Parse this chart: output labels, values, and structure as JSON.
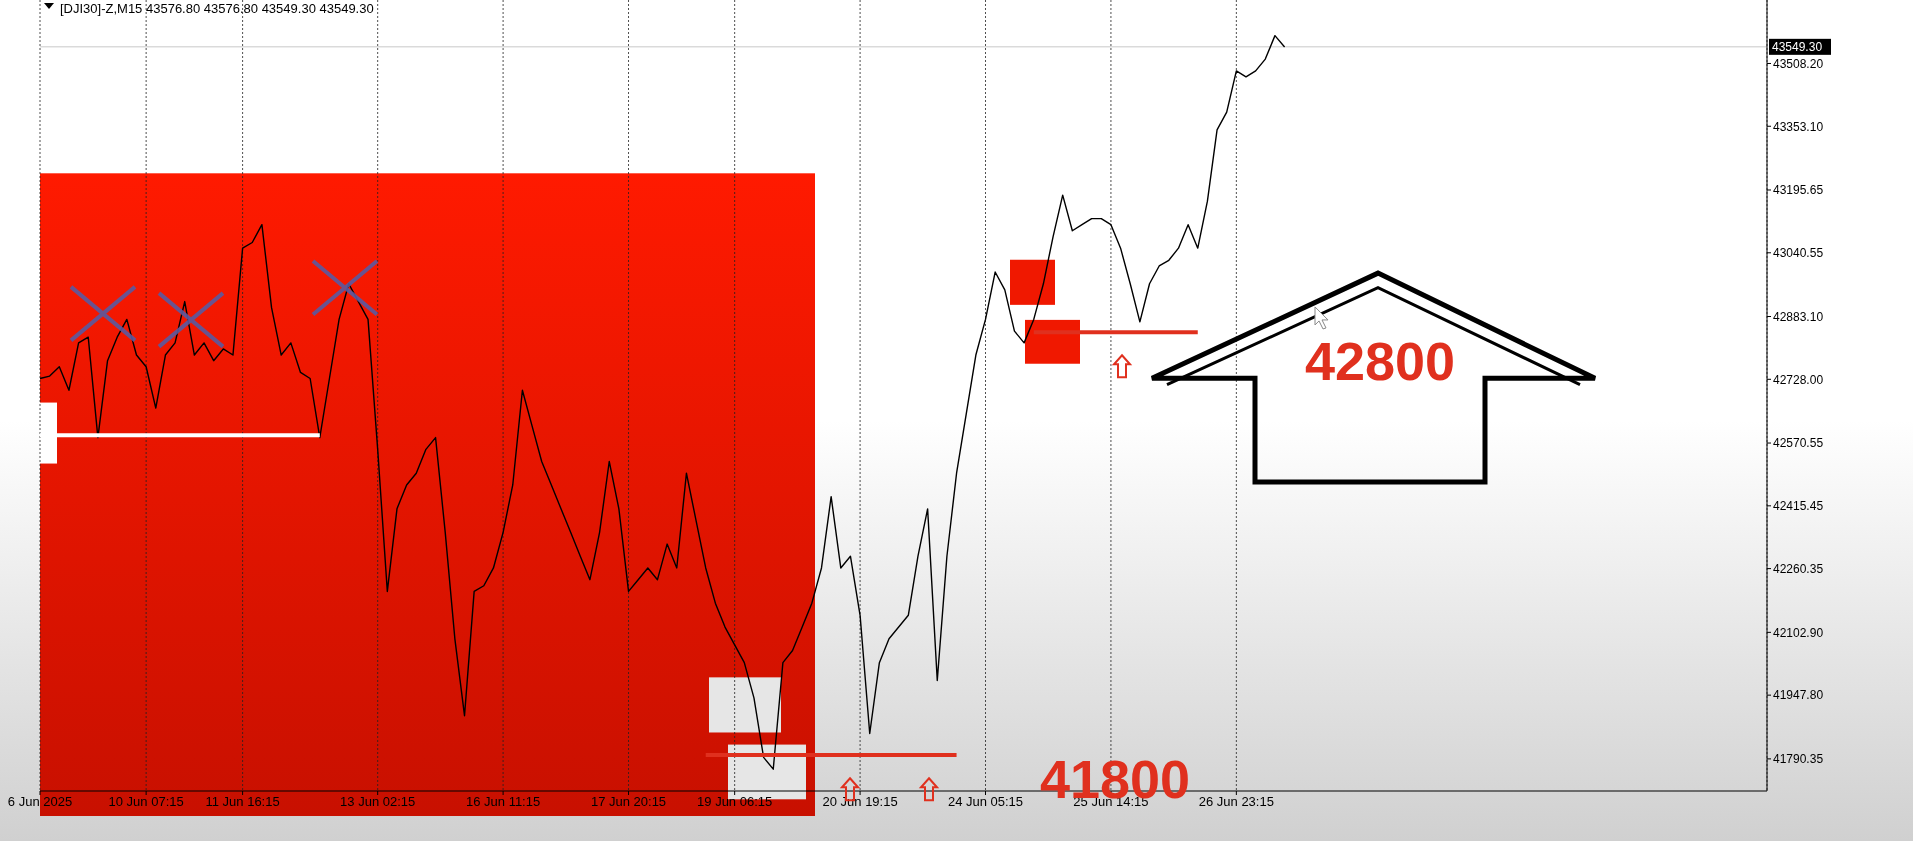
{
  "chart_data": {
    "type": "line",
    "title": "[DJI30]-Z,M15  43576.80 43576.80 43549.30 43549.30",
    "categories": [
      "6 Jun 2025",
      null,
      null,
      null,
      null,
      null,
      null,
      null,
      null,
      null,
      null,
      "10 Jun 07:15",
      null,
      null,
      null,
      null,
      null,
      null,
      null,
      null,
      null,
      "11 Jun 16:15",
      null,
      null,
      null,
      null,
      null,
      null,
      null,
      null,
      null,
      null,
      null,
      null,
      null,
      "13 Jun 02:15",
      null,
      null,
      null,
      null,
      null,
      null,
      null,
      null,
      null,
      null,
      null,
      null,
      "16 Jun 11:15",
      null,
      null,
      null,
      null,
      null,
      null,
      null,
      null,
      null,
      null,
      null,
      null,
      "17 Jun 20:15",
      null,
      null,
      null,
      null,
      null,
      null,
      null,
      null,
      null,
      null,
      "19 Jun 06:15",
      null,
      null,
      null,
      null,
      null,
      null,
      null,
      null,
      null,
      null,
      null,
      null,
      "20 Jun 19:15",
      null,
      null,
      null,
      null,
      null,
      null,
      null,
      null,
      null,
      null,
      null,
      null,
      "24 Jun 05:15",
      null,
      null,
      null,
      null,
      null,
      null,
      null,
      null,
      null,
      null,
      null,
      null,
      "25 Jun 14:15",
      null,
      null,
      null,
      null,
      null,
      null,
      null,
      null,
      null,
      null,
      null,
      null,
      "26 Jun 23:15",
      null,
      null,
      null,
      null,
      null,
      null,
      null,
      null,
      null,
      null,
      null,
      null,
      null,
      null,
      null,
      null,
      null,
      null,
      null,
      null,
      null,
      null,
      null,
      null,
      null,
      null,
      null,
      null,
      null,
      null,
      null,
      null,
      null,
      null,
      null,
      null,
      null,
      null,
      null,
      null,
      null,
      null,
      null,
      null,
      null,
      null,
      null,
      null,
      null,
      null,
      null,
      null,
      null,
      null,
      null
    ],
    "ylim": [
      41711,
      43665
    ],
    "yticks": [
      {
        "value": 43508.2,
        "label": "43508.20"
      },
      {
        "value": 43353.1,
        "label": "43353.10"
      },
      {
        "value": 43195.65,
        "label": "43195.65"
      },
      {
        "value": 43040.55,
        "label": "43040.55"
      },
      {
        "value": 42883.1,
        "label": "42883.10"
      },
      {
        "value": 42728,
        "label": "42728.00"
      },
      {
        "value": 42570.55,
        "label": "42570.55"
      },
      {
        "value": 42415.45,
        "label": "42415.45"
      },
      {
        "value": 42260.35,
        "label": "42260.35"
      },
      {
        "value": 42102.9,
        "label": "42102.90"
      },
      {
        "value": 41947.8,
        "label": "41947.80"
      },
      {
        "value": 41790.35,
        "label": "41790.35"
      }
    ],
    "grid": "x",
    "marker": "none",
    "series": [
      {
        "color": "#000000",
        "values": [
          42730,
          42736,
          42759,
          42701,
          42818,
          42832,
          42584,
          42774,
          42832,
          42876,
          42788,
          42759,
          42657,
          42788,
          42818,
          42920,
          42788,
          42818,
          42774,
          42803,
          42788,
          43052,
          43066,
          43110,
          42905,
          42788,
          42818,
          42745,
          42730,
          42584,
          42730,
          42876,
          42964,
          42920,
          42876,
          42555,
          42204,
          42408,
          42467,
          42496,
          42555,
          42584,
          42350,
          42087,
          41897,
          42204,
          42218,
          42262,
          42350,
          42467,
          42701,
          42613,
          42525,
          42467,
          42408,
          42350,
          42291,
          42233,
          42350,
          42525,
          42408,
          42204,
          42233,
          42262,
          42233,
          42321,
          42262,
          42496,
          42379,
          42262,
          42175,
          42116,
          42072,
          42028,
          41941,
          41794,
          41765,
          42028,
          42058,
          42116,
          42175,
          42262,
          42438,
          42262,
          42291,
          42145,
          41853,
          42028,
          42087,
          42116,
          42145,
          42291,
          42408,
          41984,
          42291,
          42496,
          42642,
          42788,
          42876,
          42993,
          42949,
          42847,
          42818,
          42876,
          42964,
          43080,
          43183,
          43095,
          43110,
          43125,
          43125,
          43110,
          43052,
          42964,
          42870,
          42964,
          43008,
          43022,
          43052,
          43110,
          43052,
          43168,
          43344,
          43388,
          43490,
          43475,
          43490,
          43519,
          43577,
          43549,
          null,
          null,
          null,
          null,
          null,
          null,
          null,
          null,
          null,
          null,
          null,
          null,
          null,
          null,
          null,
          null,
          null,
          null,
          null,
          null,
          null,
          null,
          null,
          null,
          null,
          null,
          null,
          null,
          null,
          null,
          null,
          null,
          null,
          null,
          null,
          null,
          null,
          null,
          null,
          null,
          null,
          null,
          null,
          null,
          null,
          null,
          null,
          null,
          null,
          null
        ]
      },
      {
        "color": "#ffffff",
        "values": [
          42590,
          42590,
          42590,
          42590,
          42590,
          42590,
          42590,
          42590,
          42590,
          42590,
          42590,
          42590,
          42590,
          42590,
          42590,
          42590,
          42590,
          42590,
          42590,
          42590,
          42590,
          42590,
          42590,
          42590,
          42590,
          42590,
          42590,
          42590,
          42590,
          42590,
          null,
          null,
          null,
          null,
          null,
          null,
          null,
          null,
          null,
          null,
          null,
          null,
          null,
          null,
          null,
          null,
          null,
          null,
          null,
          null,
          null,
          null,
          null,
          null,
          null,
          null,
          null,
          null,
          null,
          null,
          null,
          null,
          null,
          null,
          null,
          null,
          null,
          null,
          null,
          null,
          null,
          null,
          null,
          null,
          null,
          null,
          null,
          null,
          null,
          null,
          null,
          null,
          null,
          null,
          null,
          null,
          null,
          null,
          null,
          null,
          null,
          null,
          null,
          null,
          null,
          null,
          null,
          null,
          null,
          null,
          null,
          null,
          null,
          null,
          null,
          null,
          null,
          null,
          null,
          null,
          null,
          null,
          null,
          null,
          null,
          null,
          null,
          null,
          null,
          null,
          null,
          null,
          null,
          null,
          null,
          null,
          null,
          null,
          null,
          null,
          null,
          null,
          null,
          null,
          null,
          null,
          null,
          null,
          null,
          null,
          null,
          null,
          null,
          null,
          null,
          null,
          null,
          null,
          null,
          null,
          null,
          null,
          null,
          null,
          null,
          null,
          null,
          null,
          null,
          null,
          null,
          null,
          null,
          null,
          null,
          null,
          null,
          null,
          null,
          null,
          null,
          null,
          null,
          null,
          null,
          null,
          null,
          null,
          null,
          null
        ]
      },
      {
        "color": "#e0301e",
        "values": [
          null,
          null,
          null,
          null,
          null,
          null,
          null,
          null,
          null,
          null,
          null,
          null,
          null,
          null,
          null,
          null,
          null,
          null,
          null,
          null,
          null,
          null,
          null,
          null,
          null,
          null,
          null,
          null,
          null,
          null,
          null,
          null,
          null,
          null,
          null,
          null,
          null,
          null,
          null,
          null,
          null,
          null,
          null,
          null,
          null,
          null,
          null,
          null,
          null,
          null,
          null,
          null,
          null,
          null,
          null,
          null,
          null,
          null,
          null,
          null,
          null,
          null,
          null,
          null,
          null,
          null,
          null,
          null,
          null,
          null,
          null,
          null,
          null,
          null,
          null,
          null,
          null,
          null,
          null,
          null,
          null,
          null,
          null,
          null,
          null,
          null,
          null,
          null,
          null,
          null,
          null,
          null,
          null,
          null,
          null,
          null,
          null,
          null,
          null,
          null,
          null,
          null,
          null,
          42844,
          42844,
          42844,
          42844,
          42844,
          42844,
          42844,
          42844,
          42844,
          42844,
          42844,
          42844,
          42844,
          42844,
          42844,
          42844,
          42844,
          42844,
          null,
          null,
          null,
          null,
          null,
          null,
          null,
          null,
          null,
          null,
          null,
          null,
          null,
          null,
          null,
          null,
          null,
          null,
          null,
          null,
          null,
          null,
          null,
          null,
          null,
          null,
          null,
          null,
          null,
          null,
          null,
          null,
          null,
          null,
          null,
          null,
          null,
          null,
          null,
          null,
          null,
          null,
          null,
          null,
          null,
          null,
          null,
          null,
          null,
          null,
          null,
          null,
          null,
          null,
          null,
          null,
          null,
          null,
          null
        ]
      },
      {
        "color": "#e0301e",
        "values": [
          null,
          null,
          null,
          null,
          null,
          null,
          null,
          null,
          null,
          null,
          null,
          null,
          null,
          null,
          null,
          null,
          null,
          null,
          null,
          null,
          null,
          null,
          null,
          null,
          null,
          null,
          null,
          null,
          null,
          null,
          null,
          null,
          null,
          null,
          null,
          null,
          null,
          null,
          null,
          null,
          null,
          null,
          null,
          null,
          null,
          null,
          null,
          null,
          null,
          null,
          null,
          null,
          null,
          null,
          null,
          null,
          null,
          null,
          null,
          null,
          null,
          null,
          null,
          null,
          null,
          null,
          null,
          null,
          null,
          41800,
          41800,
          41800,
          41800,
          41800,
          41800,
          41800,
          41800,
          41800,
          41800,
          41800,
          41800,
          41800,
          41800,
          41800,
          41800,
          41800,
          41800,
          41800,
          41800,
          41800,
          41800,
          41800,
          41800,
          41800,
          41800,
          41800,
          null,
          null,
          null,
          null,
          null,
          null,
          null,
          null,
          null,
          null,
          null,
          null,
          null,
          null,
          null,
          null,
          null,
          null,
          null,
          null,
          null,
          null,
          null,
          null,
          null,
          null,
          null,
          null,
          null,
          null,
          null,
          null,
          null,
          null,
          null,
          null,
          null,
          null,
          null,
          null,
          null,
          null,
          null,
          null,
          null,
          null,
          null,
          null,
          null,
          null,
          null,
          null,
          null,
          null,
          null,
          null,
          null,
          null,
          null,
          null,
          null,
          null,
          null,
          null,
          null,
          null,
          null,
          null,
          null,
          null,
          null,
          null,
          null,
          null,
          null,
          null,
          null,
          null,
          null,
          null,
          null,
          null,
          null,
          null
        ]
      }
    ],
    "ref_lines": [
      {
        "axis": "y",
        "value": 43549.3,
        "label": "43549.30",
        "color": "#c8c8c8"
      }
    ],
    "annotations": [
      "42800",
      "41800"
    ]
  }
}
